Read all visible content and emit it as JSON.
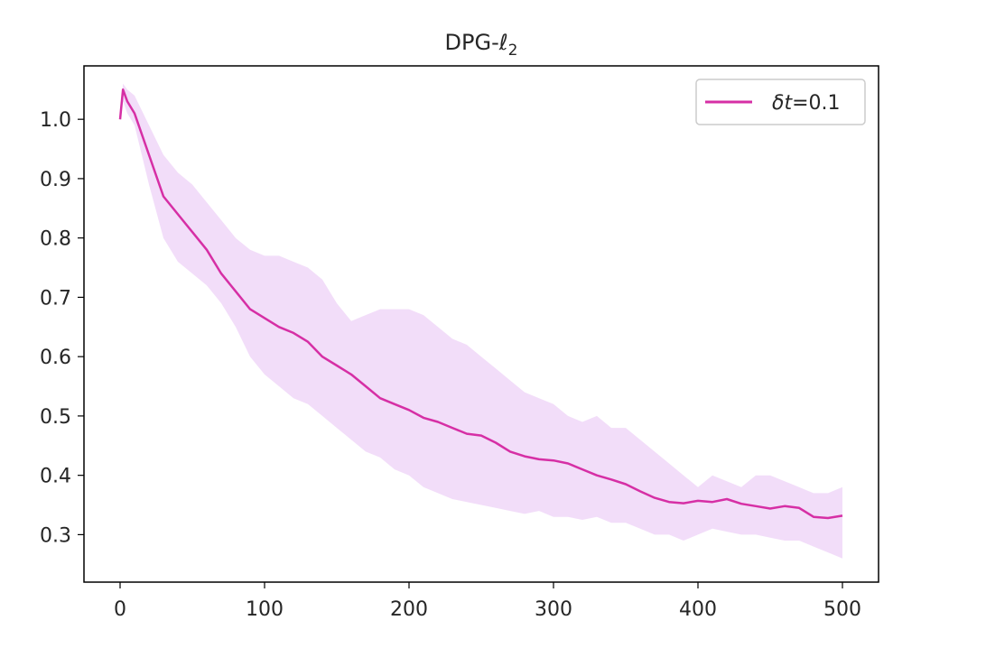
{
  "chart_data": {
    "type": "line",
    "title": "DPG-ℓ2",
    "xlabel": "",
    "ylabel": "",
    "xlim": [
      -25,
      525
    ],
    "ylim": [
      0.22,
      1.09
    ],
    "xticks": [
      0,
      100,
      200,
      300,
      400,
      500
    ],
    "yticks": [
      0.3,
      0.4,
      0.5,
      0.6,
      0.7,
      0.8,
      0.9,
      1.0
    ],
    "xtick_labels": [
      "0",
      "100",
      "200",
      "300",
      "400",
      "500"
    ],
    "ytick_labels": [
      "0.3",
      "0.4",
      "0.5",
      "0.6",
      "0.7",
      "0.8",
      "0.9",
      "1.0"
    ],
    "grid": false,
    "legend_position": "top-right",
    "series": [
      {
        "name": "δt=0.1",
        "color": "#d62fa5",
        "band_color": "#e9c6f5",
        "x": [
          0,
          2,
          5,
          10,
          20,
          30,
          40,
          50,
          60,
          70,
          80,
          90,
          100,
          110,
          120,
          130,
          140,
          150,
          160,
          170,
          180,
          190,
          200,
          210,
          220,
          230,
          240,
          250,
          260,
          270,
          280,
          290,
          300,
          310,
          320,
          330,
          340,
          350,
          360,
          370,
          380,
          390,
          400,
          410,
          420,
          430,
          440,
          450,
          460,
          470,
          480,
          490,
          500
        ],
        "values": [
          1.0,
          1.05,
          1.03,
          1.01,
          0.94,
          0.87,
          0.84,
          0.81,
          0.78,
          0.74,
          0.71,
          0.68,
          0.665,
          0.65,
          0.64,
          0.625,
          0.6,
          0.585,
          0.57,
          0.55,
          0.53,
          0.52,
          0.51,
          0.497,
          0.49,
          0.48,
          0.47,
          0.467,
          0.455,
          0.44,
          0.432,
          0.427,
          0.425,
          0.42,
          0.41,
          0.4,
          0.393,
          0.385,
          0.373,
          0.362,
          0.355,
          0.353,
          0.357,
          0.355,
          0.36,
          0.352,
          0.348,
          0.344,
          0.348,
          0.345,
          0.33,
          0.328,
          0.332
        ],
        "lower": [
          1.0,
          1.03,
          1.01,
          0.99,
          0.89,
          0.8,
          0.76,
          0.74,
          0.72,
          0.69,
          0.65,
          0.6,
          0.57,
          0.55,
          0.53,
          0.52,
          0.5,
          0.48,
          0.46,
          0.44,
          0.43,
          0.41,
          0.4,
          0.38,
          0.37,
          0.36,
          0.355,
          0.35,
          0.345,
          0.34,
          0.335,
          0.34,
          0.33,
          0.33,
          0.325,
          0.33,
          0.32,
          0.32,
          0.31,
          0.3,
          0.3,
          0.29,
          0.3,
          0.31,
          0.305,
          0.3,
          0.3,
          0.295,
          0.29,
          0.29,
          0.28,
          0.27,
          0.26
        ],
        "upper": [
          1.0,
          1.06,
          1.05,
          1.04,
          0.99,
          0.94,
          0.91,
          0.89,
          0.86,
          0.83,
          0.8,
          0.78,
          0.77,
          0.77,
          0.76,
          0.75,
          0.73,
          0.69,
          0.66,
          0.67,
          0.68,
          0.68,
          0.68,
          0.67,
          0.65,
          0.63,
          0.62,
          0.6,
          0.58,
          0.56,
          0.54,
          0.53,
          0.52,
          0.5,
          0.49,
          0.5,
          0.48,
          0.48,
          0.46,
          0.44,
          0.42,
          0.4,
          0.38,
          0.4,
          0.39,
          0.38,
          0.4,
          0.4,
          0.39,
          0.38,
          0.37,
          0.37,
          0.38
        ]
      }
    ]
  }
}
